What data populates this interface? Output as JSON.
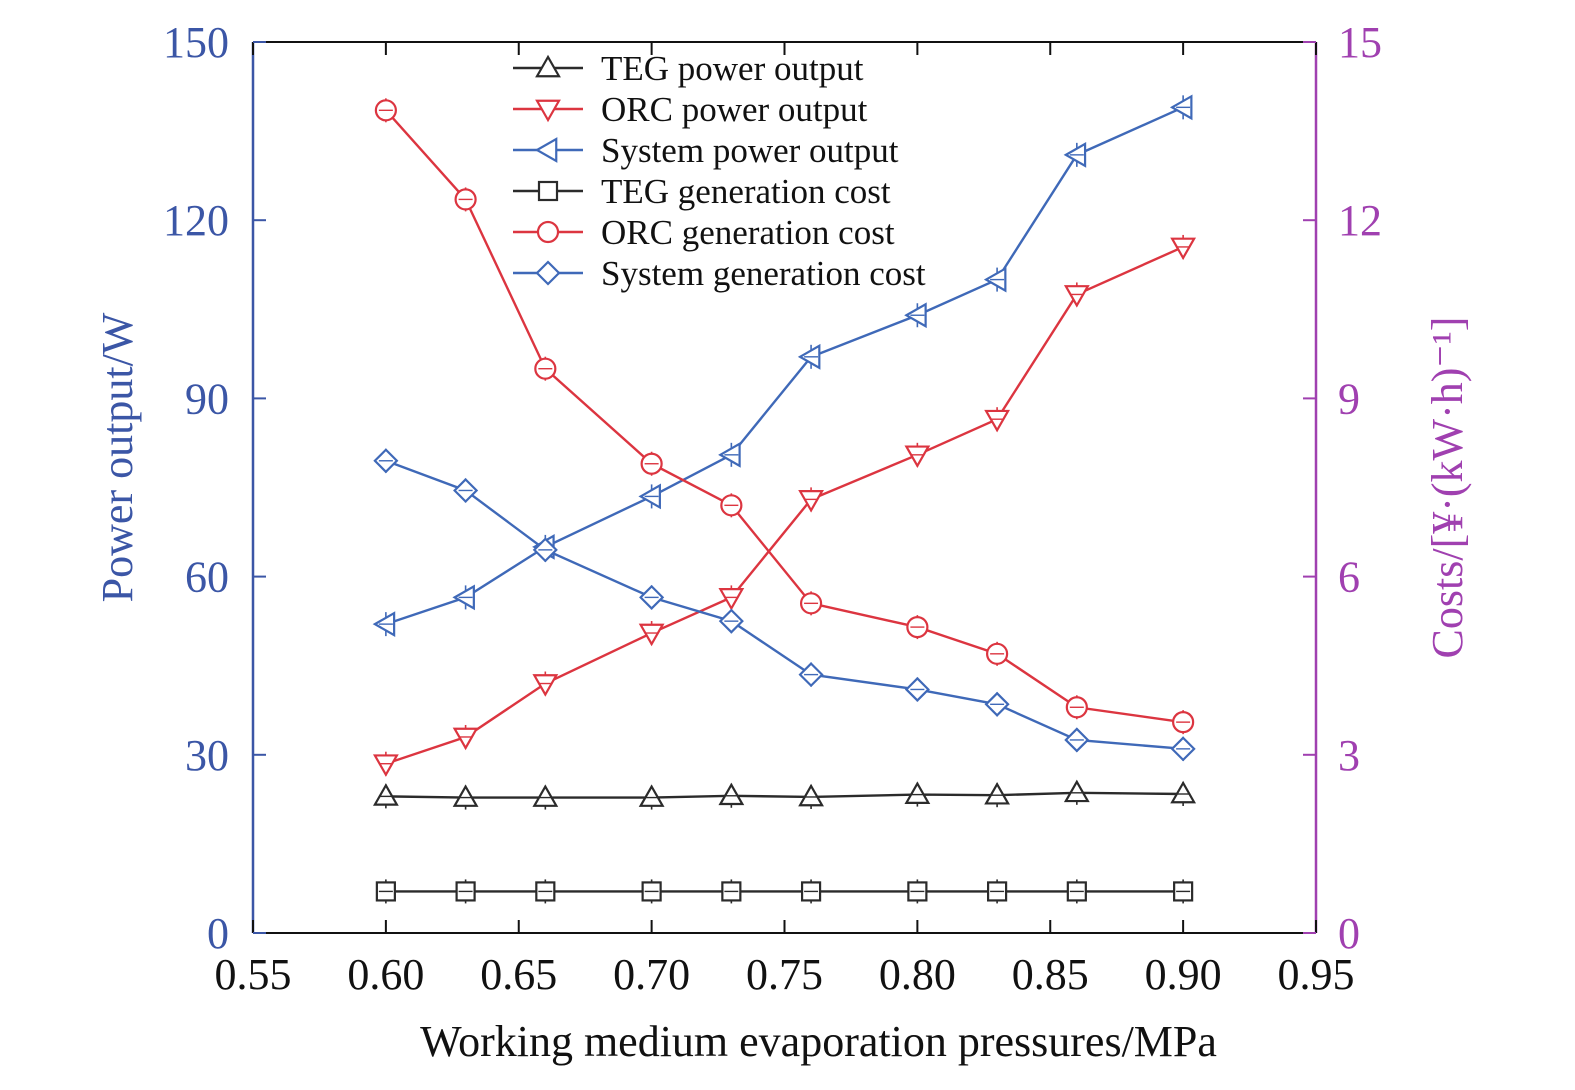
{
  "chart_data": {
    "type": "line",
    "xlabel": "Working medium evaporation pressures/MPa",
    "ylabel_left": "Power output/W",
    "ylabel_right": "Costs/[¥·(kW·h)⁻¹]",
    "xlim": [
      0.55,
      0.95
    ],
    "ylim_left": [
      0,
      150
    ],
    "ylim_right": [
      0,
      15
    ],
    "x_ticks": [
      "0.55",
      "0.60",
      "0.65",
      "0.70",
      "0.75",
      "0.80",
      "0.85",
      "0.90",
      "0.95"
    ],
    "y_left_ticks": [
      "0",
      "30",
      "60",
      "90",
      "120",
      "150"
    ],
    "y_right_ticks": [
      "0",
      "3",
      "6",
      "9",
      "12",
      "15"
    ],
    "legend_position": "top-center",
    "x": [
      0.6,
      0.63,
      0.66,
      0.7,
      0.73,
      0.76,
      0.8,
      0.83,
      0.86,
      0.9
    ],
    "series": [
      {
        "name": "TEG power output",
        "axis": "left",
        "marker": "triangle-up",
        "color": "#2b2b2b",
        "values": [
          23.0,
          22.8,
          22.8,
          22.8,
          23.1,
          22.9,
          23.3,
          23.2,
          23.6,
          23.4
        ]
      },
      {
        "name": "ORC power output",
        "axis": "left",
        "marker": "triangle-down",
        "color": "#dc3540",
        "values": [
          28.5,
          33.0,
          42.0,
          50.5,
          56.5,
          73.0,
          80.5,
          86.5,
          107.5,
          115.5
        ]
      },
      {
        "name": "System power output",
        "axis": "left",
        "marker": "triangle-left",
        "color": "#3f69b8",
        "values": [
          52.0,
          56.5,
          65.0,
          73.5,
          80.5,
          97.0,
          104.0,
          110.0,
          131.0,
          139.0
        ]
      },
      {
        "name": "TEG generation cost",
        "axis": "right",
        "marker": "square",
        "color": "#2b2b2b",
        "values": [
          0.7,
          0.7,
          0.7,
          0.7,
          0.7,
          0.7,
          0.7,
          0.7,
          0.7,
          0.7
        ]
      },
      {
        "name": "ORC generation cost",
        "axis": "right",
        "marker": "circle",
        "color": "#dc3540",
        "values": [
          13.85,
          12.35,
          9.5,
          7.9,
          7.2,
          5.55,
          5.15,
          4.7,
          3.8,
          3.55
        ]
      },
      {
        "name": "System generation cost",
        "axis": "right",
        "marker": "diamond",
        "color": "#3f69b8",
        "values": [
          7.95,
          7.45,
          6.45,
          5.65,
          5.25,
          4.35,
          4.1,
          3.85,
          3.25,
          3.1
        ]
      }
    ],
    "colors": {
      "left_axis": "#3b56a6",
      "right_axis": "#a040b0",
      "frame": "#111111"
    }
  }
}
